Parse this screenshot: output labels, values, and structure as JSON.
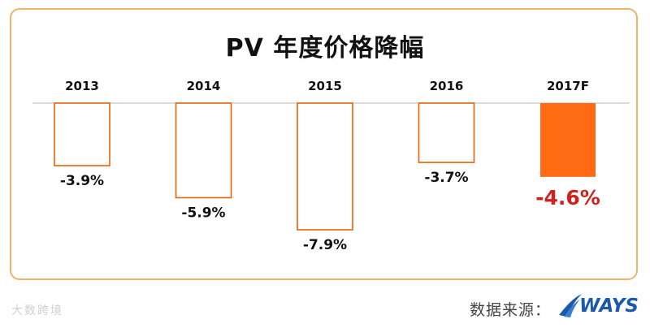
{
  "title": "PV  年度价格降幅",
  "source": "数据来源：",
  "logo_text": "WAYS",
  "watermark": "大数跨境",
  "colors": {
    "frame_border": "#f0b36a",
    "bar_outline": "#e8640a",
    "bar_fill_forecast": "#ff6a13",
    "forecast_label": "#d0211c",
    "baseline": "#cfcfcf"
  },
  "chart_data": {
    "type": "bar",
    "categories": [
      "2013",
      "2014",
      "2015",
      "2016",
      "2017F"
    ],
    "values": [
      -3.9,
      -5.9,
      -7.9,
      -3.7,
      -4.6
    ],
    "labels": [
      "-3.9%",
      "-5.9%",
      "-7.9%",
      "-3.7%",
      "-4.6%"
    ],
    "highlight": "2017F",
    "title": "PV  年度价格降幅",
    "ylabel": "",
    "xlabel": "",
    "ylim": [
      -8,
      0
    ],
    "grid": false,
    "legend": "none"
  }
}
